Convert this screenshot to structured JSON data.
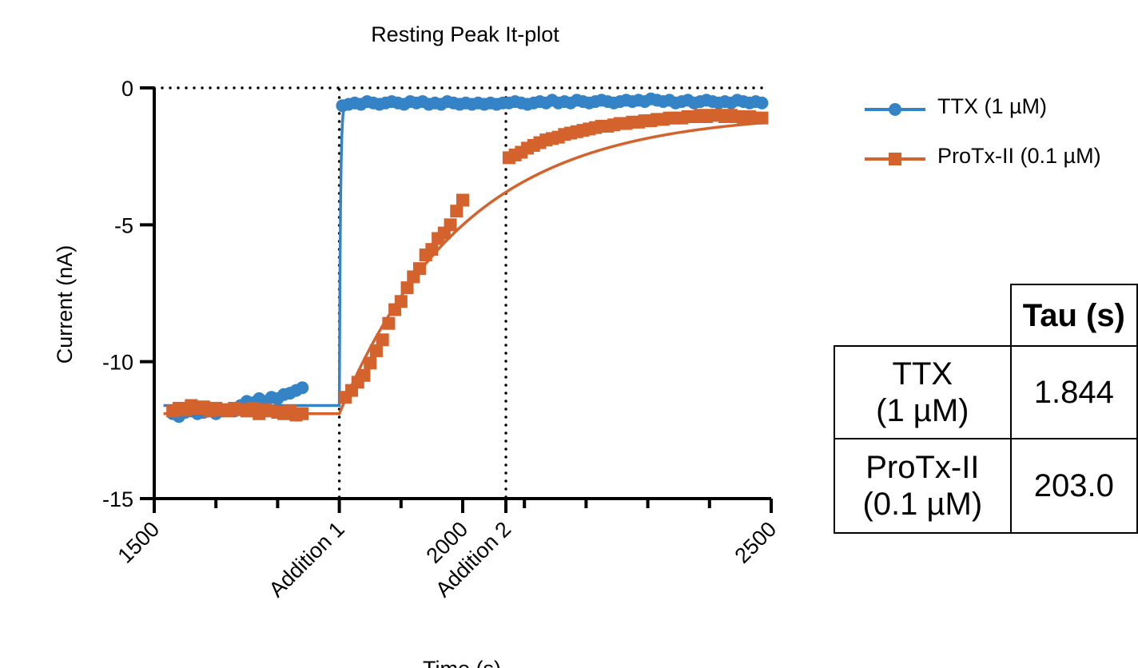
{
  "chart_data": {
    "type": "scatter",
    "title": "Resting Peak It-plot",
    "xlabel": "Time (s)",
    "ylabel": "Current (nA)",
    "xlim": [
      1500,
      2500
    ],
    "ylim": [
      -15,
      0
    ],
    "x_ticks": [
      {
        "value": 1500,
        "label": "1500"
      },
      {
        "value": 1800,
        "label": "Addition 1"
      },
      {
        "value": 2000,
        "label": "2000"
      },
      {
        "value": 2070,
        "label": "Addition 2"
      },
      {
        "value": 2500,
        "label": "2500"
      }
    ],
    "x_minor_ticks": [
      1600,
      1700,
      1900,
      2100,
      2200,
      2300,
      2400
    ],
    "y_ticks": [
      0,
      -5,
      -10,
      -15
    ],
    "y_tick_labels": [
      "0",
      "-5",
      "-10",
      "-15"
    ],
    "reference_lines": {
      "horizontal": [
        0
      ],
      "vertical": [
        1800,
        2070
      ]
    },
    "series": [
      {
        "name": "TTX (1 µM)",
        "color": "#3483c6",
        "marker": "circle",
        "x": [
          1530,
          1540,
          1550,
          1560,
          1570,
          1580,
          1590,
          1600,
          1610,
          1620,
          1630,
          1640,
          1650,
          1660,
          1670,
          1680,
          1690,
          1700,
          1710,
          1720,
          1730,
          1740,
          1805,
          1815,
          1825,
          1835,
          1845,
          1855,
          1865,
          1875,
          1885,
          1895,
          1905,
          1915,
          1925,
          1935,
          1945,
          1955,
          1965,
          1975,
          1985,
          1995,
          2005,
          2015,
          2025,
          2035,
          2045,
          2055,
          2065,
          2075,
          2085,
          2095,
          2105,
          2115,
          2125,
          2135,
          2145,
          2155,
          2165,
          2175,
          2185,
          2195,
          2205,
          2215,
          2225,
          2235,
          2245,
          2255,
          2265,
          2275,
          2285,
          2295,
          2305,
          2315,
          2325,
          2335,
          2345,
          2355,
          2365,
          2375,
          2385,
          2395,
          2405,
          2415,
          2425,
          2435,
          2445,
          2455,
          2465,
          2475,
          2485
        ],
        "y": [
          -11.9,
          -12.0,
          -11.85,
          -11.8,
          -11.9,
          -11.85,
          -11.8,
          -11.9,
          -11.8,
          -11.75,
          -11.8,
          -11.6,
          -11.45,
          -11.5,
          -11.35,
          -11.45,
          -11.3,
          -11.35,
          -11.2,
          -11.15,
          -11.05,
          -10.95,
          -0.65,
          -0.6,
          -0.55,
          -0.6,
          -0.5,
          -0.55,
          -0.6,
          -0.55,
          -0.5,
          -0.55,
          -0.6,
          -0.5,
          -0.55,
          -0.5,
          -0.6,
          -0.55,
          -0.6,
          -0.5,
          -0.55,
          -0.6,
          -0.55,
          -0.6,
          -0.55,
          -0.6,
          -0.55,
          -0.6,
          -0.55,
          -0.55,
          -0.5,
          -0.55,
          -0.6,
          -0.55,
          -0.5,
          -0.55,
          -0.45,
          -0.55,
          -0.5,
          -0.55,
          -0.45,
          -0.5,
          -0.55,
          -0.5,
          -0.45,
          -0.5,
          -0.55,
          -0.5,
          -0.45,
          -0.5,
          -0.45,
          -0.5,
          -0.4,
          -0.45,
          -0.5,
          -0.45,
          -0.55,
          -0.5,
          -0.45,
          -0.55,
          -0.5,
          -0.45,
          -0.5,
          -0.55,
          -0.5,
          -0.55,
          -0.45,
          -0.5,
          -0.55,
          -0.5,
          -0.55
        ],
        "fit": {
          "baseline": -11.6,
          "plateau": -0.55,
          "start": 1800,
          "tau_s": 1.844,
          "x_end": 2490
        }
      },
      {
        "name": "ProTx-II (0.1 µM)",
        "color": "#d4622d",
        "marker": "square",
        "x": [
          1530,
          1540,
          1550,
          1560,
          1570,
          1580,
          1590,
          1600,
          1610,
          1620,
          1630,
          1640,
          1650,
          1660,
          1670,
          1680,
          1690,
          1700,
          1710,
          1720,
          1730,
          1740,
          1810,
          1820,
          1830,
          1840,
          1850,
          1860,
          1870,
          1880,
          1890,
          1900,
          1910,
          1920,
          1930,
          1940,
          1950,
          1960,
          1970,
          1980,
          1990,
          2000,
          2075,
          2085,
          2095,
          2105,
          2115,
          2125,
          2135,
          2145,
          2155,
          2165,
          2175,
          2185,
          2195,
          2205,
          2215,
          2225,
          2235,
          2245,
          2255,
          2265,
          2275,
          2285,
          2295,
          2305,
          2315,
          2325,
          2335,
          2345,
          2355,
          2365,
          2375,
          2385,
          2395,
          2405,
          2415,
          2425,
          2435,
          2445,
          2455,
          2465,
          2475,
          2485
        ],
        "y": [
          -11.8,
          -11.7,
          -11.75,
          -11.6,
          -11.7,
          -11.65,
          -11.8,
          -11.7,
          -11.75,
          -11.8,
          -11.7,
          -11.75,
          -11.8,
          -11.7,
          -11.9,
          -11.75,
          -11.8,
          -11.85,
          -11.9,
          -11.8,
          -11.95,
          -11.9,
          -11.3,
          -11.05,
          -10.75,
          -10.5,
          -10.05,
          -9.6,
          -9.2,
          -8.6,
          -8.1,
          -7.8,
          -7.3,
          -6.9,
          -6.6,
          -6.1,
          -5.9,
          -5.5,
          -5.3,
          -5.0,
          -4.5,
          -4.1,
          -2.55,
          -2.45,
          -2.35,
          -2.2,
          -2.1,
          -2.0,
          -1.9,
          -1.85,
          -1.8,
          -1.7,
          -1.65,
          -1.6,
          -1.55,
          -1.5,
          -1.45,
          -1.4,
          -1.4,
          -1.35,
          -1.3,
          -1.3,
          -1.25,
          -1.25,
          -1.2,
          -1.2,
          -1.15,
          -1.15,
          -1.1,
          -1.1,
          -1.1,
          -1.05,
          -1.05,
          -1.0,
          -1.05,
          -1.0,
          -1.0,
          -1.05,
          -1.0,
          -1.05,
          -1.1,
          -1.05,
          -1.1,
          -1.1
        ],
        "fit": {
          "baseline": -11.9,
          "plateau": -0.9,
          "start": 1800,
          "tau_s": 203.0,
          "x_end": 2490
        }
      }
    ]
  },
  "legend": [
    {
      "label": "TTX (1 µM)",
      "color": "#3483c6",
      "marker": "circle"
    },
    {
      "label": "ProTx-II (0.1 µM)",
      "color": "#d4622d",
      "marker": "square"
    }
  ],
  "tau_table": {
    "header": "Tau (s)",
    "rows": [
      {
        "name_line1": "TTX",
        "name_line2": "(1 µM)",
        "tau": "1.844"
      },
      {
        "name_line1": "ProTx-II",
        "name_line2": "(0.1 µM)",
        "tau": "203.0"
      }
    ]
  }
}
